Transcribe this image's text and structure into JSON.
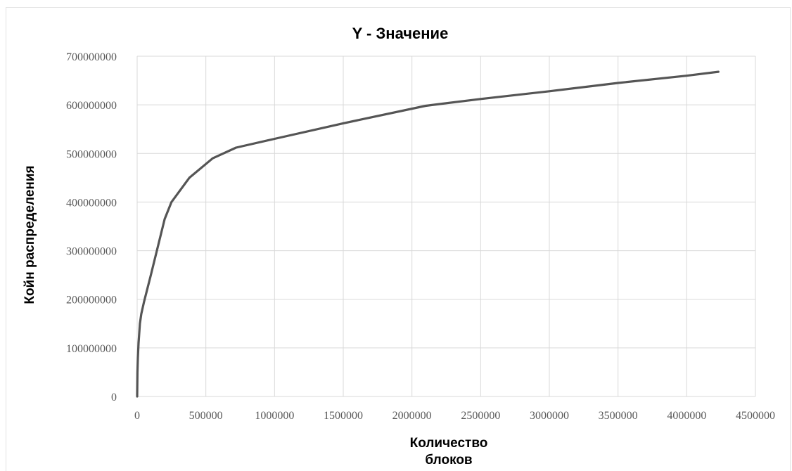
{
  "chart_data": {
    "type": "line",
    "title": "Y - Значение",
    "xlabel_lines": [
      "Количество",
      "блоков"
    ],
    "ylabel": "Койн распределения",
    "xlim": [
      0,
      4500000
    ],
    "ylim": [
      0,
      700000000
    ],
    "x_ticks": [
      "0",
      "500000",
      "1000000",
      "1500000",
      "2000000",
      "2500000",
      "3000000",
      "3500000",
      "4000000",
      "4500000"
    ],
    "y_ticks": [
      "0",
      "100000000",
      "200000000",
      "300000000",
      "400000000",
      "500000000",
      "600000000",
      "700000000"
    ],
    "grid": true,
    "legend": "none",
    "series": [
      {
        "color": "#555555",
        "x": [
          0,
          2000,
          5000,
          10000,
          20000,
          30000,
          50000,
          100000,
          200000,
          250000,
          380000,
          550000,
          720000,
          1000000,
          1500000,
          2100000,
          2500000,
          3000000,
          3500000,
          4000000,
          4230000
        ],
        "y": [
          0,
          50000000,
          80000000,
          110000000,
          150000000,
          170000000,
          195000000,
          250000000,
          365000000,
          400000000,
          450000000,
          490000000,
          512000000,
          530000000,
          562000000,
          598000000,
          612000000,
          628000000,
          645000000,
          660000000,
          668000000
        ]
      }
    ]
  }
}
